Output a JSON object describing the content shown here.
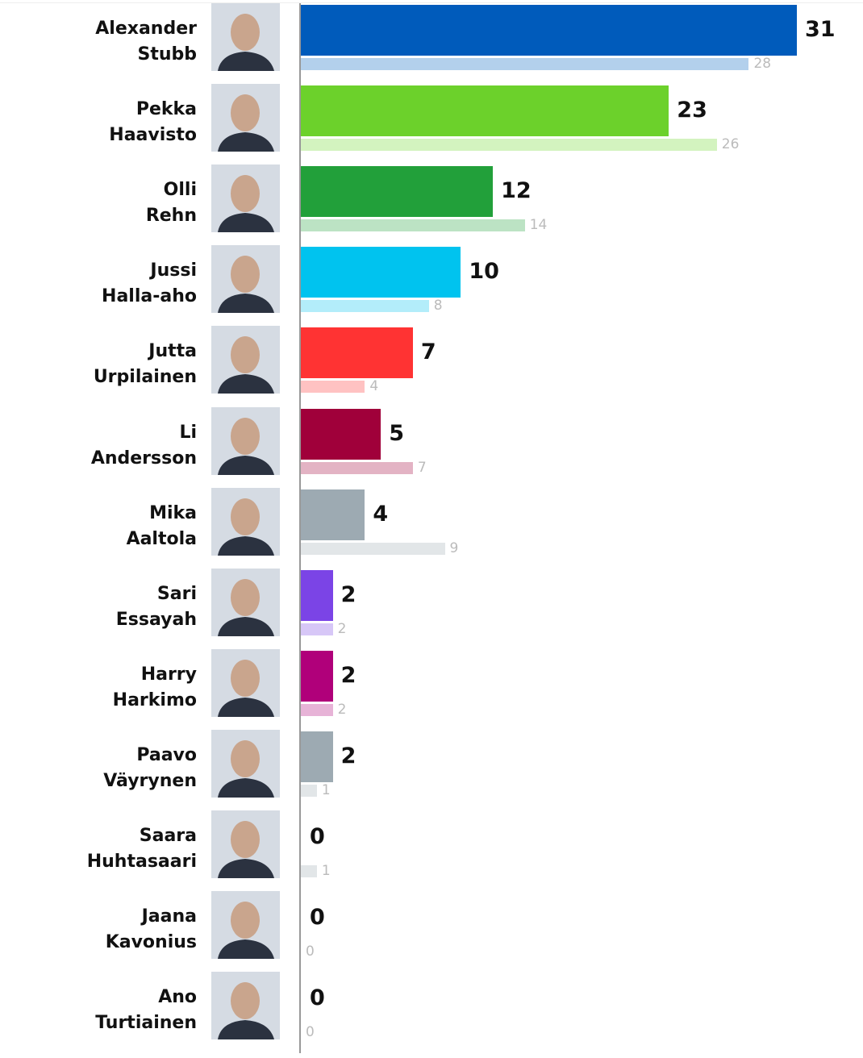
{
  "chart_data": {
    "type": "bar",
    "orientation": "horizontal",
    "xlim": [
      0,
      31
    ],
    "grid": false,
    "categories": [
      [
        "Alexander",
        "Stubb"
      ],
      [
        "Pekka",
        "Haavisto"
      ],
      [
        "Olli",
        "Rehn"
      ],
      [
        "Jussi",
        "Halla-aho"
      ],
      [
        "Jutta",
        "Urpilainen"
      ],
      [
        "Li",
        "Andersson"
      ],
      [
        "Mika",
        "Aaltola"
      ],
      [
        "Sari",
        "Essayah"
      ],
      [
        "Harry",
        "Harkimo"
      ],
      [
        "Paavo",
        "Väyrynen"
      ],
      [
        "Saara",
        "Huhtasaari"
      ],
      [
        "Jaana",
        "Kavonius"
      ],
      [
        "Ano",
        "Turtiainen"
      ]
    ],
    "series": [
      {
        "values": [
          31,
          23,
          12,
          10,
          7,
          5,
          4,
          2,
          2,
          2,
          0,
          0,
          0
        ]
      },
      {
        "values": [
          28,
          26,
          14,
          8,
          4,
          7,
          9,
          2,
          2,
          1,
          1,
          0,
          0
        ]
      }
    ],
    "colors": [
      "#005bbb",
      "#6cd12b",
      "#22a03a",
      "#00c3ef",
      "#ff3333",
      "#a0003a",
      "#9daab2",
      "#7b44e6",
      "#b0007a",
      "#9daab2",
      "#9daab2",
      "#9daab2",
      "#9daab2"
    ],
    "light_colors": [
      "#b3d0ec",
      "#d3f3bf",
      "#bce3c4",
      "#b3edfa",
      "#ffc2c2",
      "#e3b3c4",
      "#e2e6e8",
      "#d7c7f7",
      "#e7b3d7",
      "#e2e6e8",
      "#e2e6e8",
      "#e2e6e8",
      "#e2e6e8"
    ],
    "photo_icon": "candidate-portrait"
  }
}
